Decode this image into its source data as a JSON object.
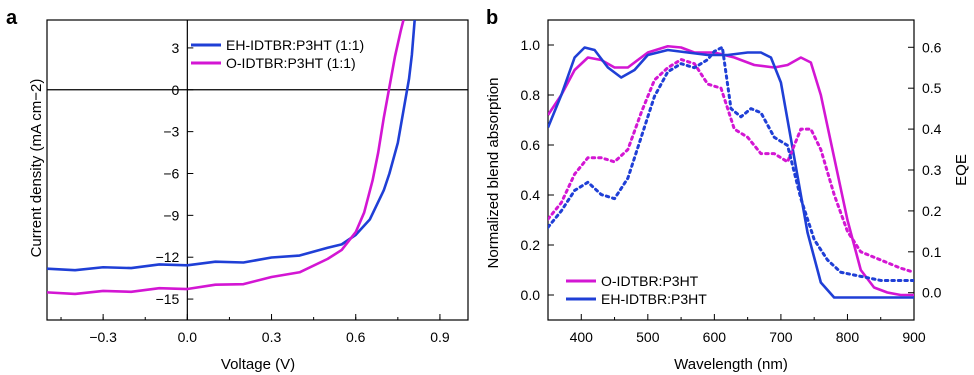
{
  "chart_data": [
    {
      "panel": "a",
      "type": "line",
      "xlabel": "Voltage (V)",
      "ylabel": "Current density (mA cm−2)",
      "xlim": [
        -0.5,
        1.0
      ],
      "ylim": [
        -16.5,
        5.0
      ],
      "xticks": [
        -0.3,
        0.0,
        0.3,
        0.6,
        0.9
      ],
      "xtick_labels": [
        "−0.3",
        "0.0",
        "0.3",
        "0.6",
        "0.9"
      ],
      "yticks": [
        3,
        0,
        -3,
        -6,
        -9,
        -12,
        -15
      ],
      "ytick_labels": [
        "3",
        "0",
        "−3",
        "−6",
        "−9",
        "−12",
        "−15"
      ],
      "zero_lines": true,
      "legend_position": "top-right",
      "series": [
        {
          "name": "EH-IDTBR:P3HT (1:1)",
          "color": "#1f3fd6",
          "x": [
            -0.5,
            -0.4,
            -0.3,
            -0.2,
            -0.1,
            0.0,
            0.1,
            0.2,
            0.3,
            0.4,
            0.5,
            0.55,
            0.6,
            0.65,
            0.7,
            0.72,
            0.75,
            0.77,
            0.79,
            0.8,
            0.81
          ],
          "y": [
            -12.9,
            -12.85,
            -12.8,
            -12.7,
            -12.6,
            -12.5,
            -12.4,
            -12.3,
            -12.1,
            -11.8,
            -11.4,
            -11.0,
            -10.4,
            -9.3,
            -7.2,
            -6.0,
            -3.8,
            -1.5,
            0.8,
            2.5,
            5.0
          ]
        },
        {
          "name": "O-IDTBR:P3HT (1:1)",
          "color": "#d316d3",
          "x": [
            -0.5,
            -0.4,
            -0.3,
            -0.2,
            -0.1,
            0.0,
            0.1,
            0.2,
            0.3,
            0.4,
            0.5,
            0.55,
            0.6,
            0.63,
            0.66,
            0.68,
            0.7,
            0.72,
            0.74,
            0.76,
            0.77
          ],
          "y": [
            -14.6,
            -14.55,
            -14.5,
            -14.4,
            -14.3,
            -14.2,
            -14.05,
            -13.85,
            -13.5,
            -13.0,
            -12.2,
            -11.4,
            -10.2,
            -8.8,
            -6.5,
            -4.5,
            -2.0,
            0.2,
            2.4,
            4.2,
            5.0
          ]
        }
      ]
    },
    {
      "panel": "b",
      "type": "line",
      "xlabel": "Wavelength (nm)",
      "ylabel": "Normalized blend absorption",
      "y2label": "EQE",
      "xlim": [
        350,
        900
      ],
      "ylim": [
        -0.1,
        1.1
      ],
      "y2lim": [
        -0.0667,
        0.6667
      ],
      "xticks": [
        400,
        500,
        600,
        700,
        800,
        900
      ],
      "xtick_labels": [
        "400",
        "500",
        "600",
        "700",
        "800",
        "900"
      ],
      "yticks": [
        0.0,
        0.2,
        0.4,
        0.6,
        0.8,
        1.0
      ],
      "ytick_labels": [
        "0.0",
        "0.2",
        "0.4",
        "0.6",
        "0.8",
        "1.0"
      ],
      "y2ticks": [
        0.0,
        0.1,
        0.2,
        0.3,
        0.4,
        0.5,
        0.6
      ],
      "y2tick_labels": [
        "0.0",
        "0.1",
        "0.2",
        "0.3",
        "0.4",
        "0.5",
        "0.6"
      ],
      "legend_position": "bottom-left",
      "series": [
        {
          "name": "O-IDTBR:P3HT",
          "color": "#d316d3",
          "style": "solid",
          "axis": "left",
          "x": [
            350,
            370,
            390,
            410,
            430,
            450,
            470,
            500,
            530,
            550,
            570,
            600,
            630,
            660,
            690,
            710,
            730,
            745,
            760,
            780,
            800,
            820,
            840,
            860,
            880,
            900
          ],
          "y": [
            0.72,
            0.8,
            0.9,
            0.95,
            0.94,
            0.91,
            0.91,
            0.97,
            0.995,
            0.99,
            0.97,
            0.97,
            0.95,
            0.92,
            0.91,
            0.92,
            0.95,
            0.93,
            0.8,
            0.55,
            0.3,
            0.1,
            0.03,
            0.01,
            0.0,
            0.0
          ]
        },
        {
          "name": "EH-IDTBR:P3HT",
          "color": "#1f3fd6",
          "style": "solid",
          "axis": "left",
          "x": [
            350,
            370,
            390,
            405,
            420,
            440,
            460,
            480,
            500,
            530,
            560,
            590,
            620,
            650,
            670,
            685,
            700,
            720,
            740,
            760,
            780,
            800,
            820,
            850,
            880,
            900
          ],
          "y": [
            0.67,
            0.8,
            0.95,
            0.99,
            0.98,
            0.91,
            0.87,
            0.9,
            0.96,
            0.98,
            0.97,
            0.96,
            0.96,
            0.97,
            0.97,
            0.95,
            0.85,
            0.55,
            0.25,
            0.05,
            -0.01,
            -0.01,
            -0.01,
            -0.01,
            -0.01,
            -0.01
          ]
        },
        {
          "name": "O-IDTBR:P3HT EQE",
          "color": "#d316d3",
          "style": "dotted",
          "axis": "right",
          "x": [
            350,
            370,
            390,
            410,
            430,
            450,
            470,
            490,
            510,
            530,
            550,
            570,
            590,
            610,
            630,
            650,
            670,
            690,
            710,
            730,
            745,
            760,
            780,
            800,
            820,
            850,
            880,
            900
          ],
          "y": [
            0.18,
            0.22,
            0.29,
            0.33,
            0.33,
            0.32,
            0.35,
            0.44,
            0.52,
            0.55,
            0.57,
            0.56,
            0.51,
            0.5,
            0.4,
            0.38,
            0.34,
            0.34,
            0.32,
            0.4,
            0.4,
            0.35,
            0.24,
            0.15,
            0.1,
            0.08,
            0.06,
            0.05
          ]
        },
        {
          "name": "EH-IDTBR:P3HT EQE",
          "color": "#1f3fd6",
          "style": "dotted",
          "axis": "right",
          "x": [
            350,
            370,
            390,
            410,
            430,
            450,
            470,
            490,
            510,
            530,
            550,
            570,
            590,
            600,
            612,
            625,
            640,
            655,
            670,
            690,
            710,
            730,
            750,
            770,
            790,
            820,
            850,
            880,
            900
          ],
          "y": [
            0.16,
            0.2,
            0.25,
            0.27,
            0.24,
            0.23,
            0.28,
            0.38,
            0.48,
            0.54,
            0.56,
            0.55,
            0.57,
            0.59,
            0.6,
            0.45,
            0.43,
            0.45,
            0.44,
            0.38,
            0.36,
            0.23,
            0.13,
            0.08,
            0.05,
            0.04,
            0.03,
            0.03,
            0.03
          ]
        }
      ]
    }
  ],
  "panels": {
    "a": {
      "letter": "a"
    },
    "b": {
      "letter": "b"
    }
  }
}
